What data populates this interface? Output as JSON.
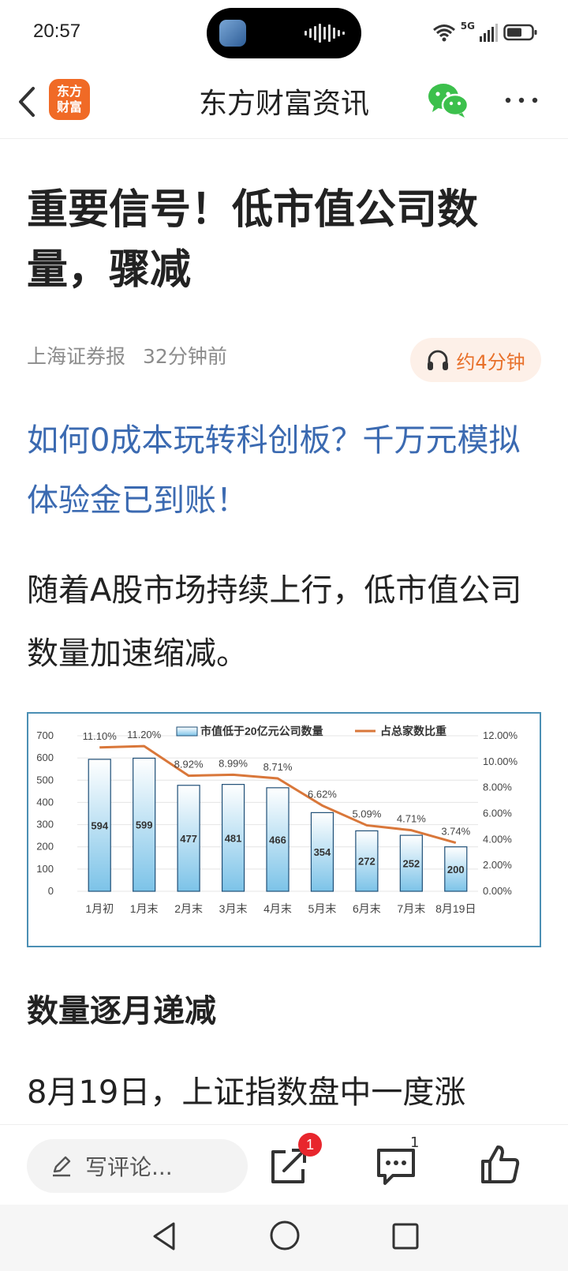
{
  "status_bar": {
    "time": "20:57",
    "network": "5G",
    "icons": [
      "wifi-icon",
      "signal-icon",
      "battery-icon"
    ]
  },
  "header": {
    "logo_line1": "东方",
    "logo_line2": "财富",
    "title": "东方财富资讯",
    "icons": [
      "back-icon",
      "wechat-icon",
      "more-icon"
    ],
    "logo_color": "#f06a26"
  },
  "article": {
    "title": "重要信号！低市值公司数量，骤减",
    "source": "上海证券报",
    "time_ago": "32分钟前",
    "listen_label": "约4分钟",
    "promo_link": "如何0成本玩转科创板？千万元模拟体验金已到账！",
    "paragraph_1": "随着A股市场持续上行，低市值公司数量加速缩减。",
    "section_heading": "数量逐月递减",
    "paragraph_2": "8月19日，上证指数盘中一度涨"
  },
  "chart_data": {
    "type": "bar",
    "categories": [
      "1月初",
      "1月末",
      "2月末",
      "3月末",
      "4月末",
      "5月末",
      "6月末",
      "7月末",
      "8月19日"
    ],
    "series": [
      {
        "name": "市值低于20亿元公司数量",
        "type": "bar",
        "axis": "left",
        "values": [
          594,
          599,
          477,
          481,
          466,
          354,
          272,
          252,
          200
        ],
        "labels": [
          "594",
          "599",
          "477",
          "481",
          "466",
          "354",
          "272",
          "252",
          "200"
        ],
        "color": "#7cc3e8"
      },
      {
        "name": "占总家数比重",
        "type": "line",
        "axis": "right",
        "values": [
          11.1,
          11.2,
          8.92,
          8.99,
          8.71,
          6.62,
          5.09,
          4.71,
          3.74
        ],
        "labels": [
          "11.10%",
          "11.20%",
          "8.92%",
          "8.99%",
          "8.71%",
          "6.62%",
          "5.09%",
          "4.71%",
          "3.74%"
        ],
        "color": "#d9773a"
      }
    ],
    "ylim": [
      0,
      700
    ],
    "yticks": [
      "0",
      "100",
      "200",
      "300",
      "400",
      "500",
      "600",
      "700"
    ],
    "y2lim": [
      0,
      12
    ],
    "y2ticks": [
      "0.00%",
      "2.00%",
      "4.00%",
      "6.00%",
      "8.00%",
      "10.00%",
      "12.00%"
    ],
    "grid": true,
    "legend_position": "top"
  },
  "bottom_bar": {
    "comment_placeholder": "写评论...",
    "share_badge": "1",
    "comment_count": "1",
    "badge_color": "#e8262d"
  }
}
